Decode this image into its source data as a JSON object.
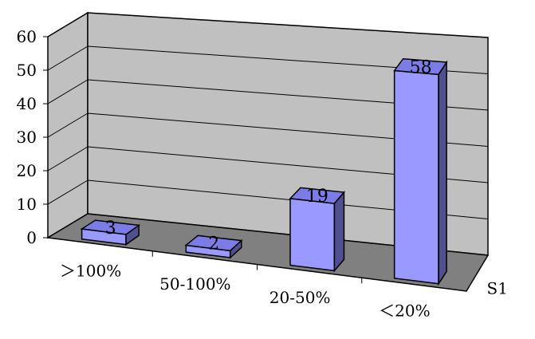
{
  "chart_data": {
    "type": "bar",
    "style": "3d-column",
    "categories": [
      "＞100%",
      "50-100%",
      "20-50%",
      "＜20%"
    ],
    "series": [
      {
        "name": "S1",
        "values": [
          3,
          2,
          19,
          58
        ]
      }
    ],
    "data_labels": [
      "3",
      "2",
      "19",
      "58"
    ],
    "yticks": [
      "0",
      "10",
      "20",
      "30",
      "40",
      "50",
      "60"
    ],
    "ylim": [
      0,
      60
    ],
    "grid": true,
    "colors": {
      "bar_front": "#9999ff",
      "bar_top": "#7c7ce6",
      "bar_side": "#50508f",
      "wall": "#c0c0c0",
      "floor": "#808080"
    }
  }
}
